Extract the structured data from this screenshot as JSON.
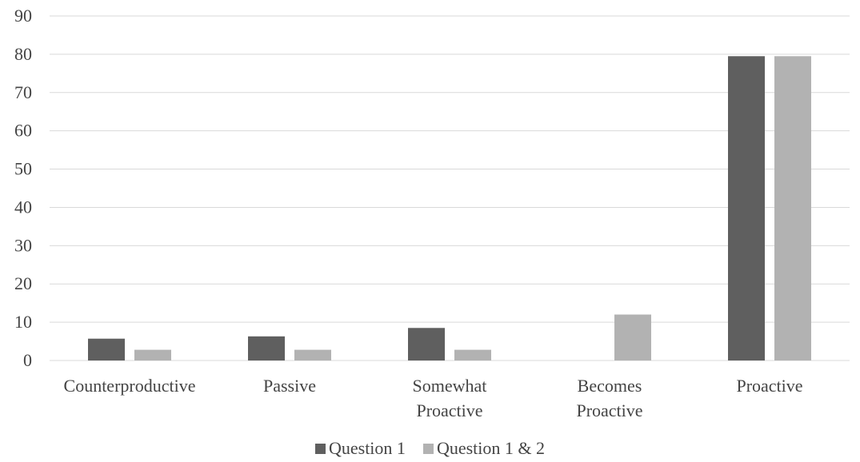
{
  "chart_data": {
    "type": "bar",
    "title": "",
    "xlabel": "",
    "ylabel": "",
    "categories": [
      [
        "Counterproductive"
      ],
      [
        "Passive"
      ],
      [
        "Somewhat",
        "Proactive"
      ],
      [
        "Becomes",
        "Proactive"
      ],
      [
        "Proactive"
      ]
    ],
    "series": [
      {
        "name": "Question 1",
        "color": "#5f5f5f",
        "values": [
          5.7,
          6.3,
          8.5,
          0,
          79.5
        ]
      },
      {
        "name": "Question 1 & 2",
        "color": "#b2b2b2",
        "values": [
          2.8,
          2.8,
          2.8,
          12.0,
          79.5
        ]
      }
    ],
    "ylim": [
      0,
      90
    ],
    "yticks": [
      "0",
      "10",
      "20",
      "30",
      "40",
      "50",
      "60",
      "70",
      "80",
      "90"
    ],
    "grid": true,
    "gridline_color": "#d9d9d9",
    "legend_position": "bottom-center"
  }
}
